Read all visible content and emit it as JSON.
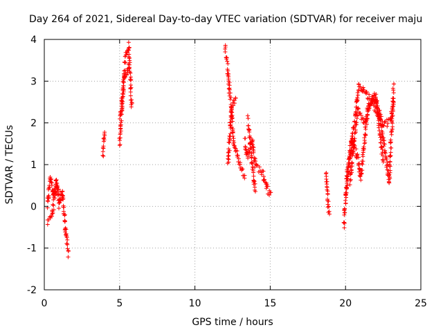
{
  "chart_data": {
    "type": "scatter",
    "title": "Day 264 of 2021, Sidereal Day-to-day VTEC variation (SDTVAR) for receiver maju",
    "xlabel": "GPS time / hours",
    "ylabel": "SDTVAR / TECUs",
    "xlim": [
      0,
      25
    ],
    "ylim": [
      -2,
      4
    ],
    "xticks": [
      0,
      5,
      10,
      15,
      20,
      25
    ],
    "yticks": [
      -2,
      -1,
      0,
      1,
      2,
      3,
      4
    ],
    "grid": true,
    "marker": "+",
    "color": "#ff0000",
    "series": [
      {
        "name": "SDTVAR",
        "segments": [
          {
            "x": [
              0.2,
              0.4,
              0.6,
              0.8,
              1.0,
              1.2,
              1.4,
              1.6
            ],
            "y": [
              0.0,
              0.7,
              0.3,
              0.6,
              0.0,
              0.3,
              -0.5,
              -1.15
            ]
          },
          {
            "x": [
              0.2,
              0.5,
              0.8,
              1.2
            ],
            "y": [
              -0.35,
              -0.2,
              0.45,
              0.2
            ]
          },
          {
            "x": [
              3.9,
              4.0
            ],
            "y": [
              1.25,
              1.8
            ]
          },
          {
            "x": [
              5.0,
              5.2,
              5.4,
              5.6,
              5.8
            ],
            "y": [
              1.45,
              2.7,
              3.6,
              3.85,
              2.4
            ]
          },
          {
            "x": [
              5.0,
              5.3,
              5.6
            ],
            "y": [
              2.1,
              3.0,
              3.4
            ]
          },
          {
            "x": [
              12.0,
              12.2,
              12.4,
              12.7
            ],
            "y": [
              3.8,
              3.2,
              2.3,
              2.6
            ]
          },
          {
            "x": [
              12.2,
              12.4,
              12.6,
              13.0,
              13.3
            ],
            "y": [
              1.0,
              2.3,
              1.5,
              1.0,
              0.7
            ]
          },
          {
            "x": [
              13.3,
              13.5,
              13.8,
              14.0,
              14.5,
              15.0
            ],
            "y": [
              1.6,
              1.2,
              1.6,
              1.0,
              0.8,
              0.25
            ]
          },
          {
            "x": [
              13.5,
              14.0
            ],
            "y": [
              2.1,
              0.35
            ]
          },
          {
            "x": [
              18.7,
              18.9
            ],
            "y": [
              0.8,
              -0.2
            ]
          },
          {
            "x": [
              19.9,
              20.1,
              20.4,
              20.8,
              21.0,
              21.5,
              22.0,
              22.5
            ],
            "y": [
              -0.5,
              0.8,
              1.6,
              1.2,
              0.7,
              2.4,
              2.6,
              1.1
            ]
          },
          {
            "x": [
              20.0,
              20.5,
              20.9,
              21.2,
              21.8,
              22.3,
              22.9,
              23.2
            ],
            "y": [
              0.3,
              1.8,
              2.9,
              2.8,
              2.5,
              2.1,
              0.6,
              2.9
            ]
          },
          {
            "x": [
              20.3,
              20.8,
              21.3,
              21.9,
              22.5,
              23.0,
              23.2
            ],
            "y": [
              0.6,
              2.3,
              2.0,
              2.7,
              1.9,
              2.1,
              2.5
            ]
          }
        ]
      }
    ]
  }
}
